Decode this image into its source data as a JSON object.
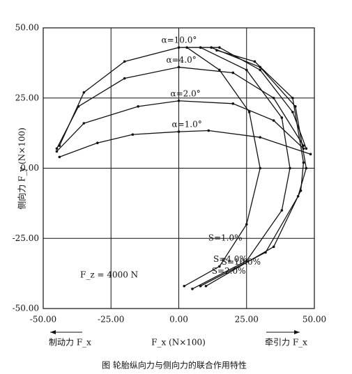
{
  "chart_data": {
    "type": "line",
    "ylabel": "侧向力 F_y (N×100)",
    "xlabel": "F_x (N×100)",
    "left_note": "制动力 F_x",
    "right_note": "牵引力 F_x",
    "annotation": "F_z = 4000 N",
    "caption": "图 轮胎纵向力与侧向力的联合作用特性",
    "xlim": [
      -50,
      50
    ],
    "ylim": [
      -50,
      50
    ],
    "xticks": [
      {
        "value": -50,
        "label": "-50.00"
      },
      {
        "value": -25,
        "label": "-25.00"
      },
      {
        "value": 0,
        "label": "0.00"
      },
      {
        "value": 25,
        "label": "25.00"
      },
      {
        "value": 50,
        "label": "50.00"
      }
    ],
    "yticks": [
      {
        "value": 50,
        "label": "50.00"
      },
      {
        "value": 25,
        "label": "25.00"
      },
      {
        "value": 0,
        "label": "0.00"
      },
      {
        "value": -25,
        "label": "-25.00"
      },
      {
        "value": -50,
        "label": "-50.00"
      }
    ],
    "grid": true,
    "series": [
      {
        "name": "α=1.0°",
        "color": "#111111",
        "x": [
          -44,
          -30,
          -17,
          0,
          11,
          30,
          48.6
        ],
        "values": [
          4,
          9,
          12,
          13,
          13.4,
          11,
          5
        ]
      },
      {
        "name": "α=2.0°",
        "color": "#111111",
        "x": [
          -45,
          -35,
          -15,
          0,
          20,
          35,
          46
        ],
        "values": [
          6,
          16,
          22,
          24,
          23,
          17,
          7
        ]
      },
      {
        "name": "α=4.0°",
        "color": "#111111",
        "x": [
          -45,
          -37,
          -20,
          0,
          20,
          35,
          46
        ],
        "values": [
          7,
          22,
          32,
          36,
          34,
          25,
          8
        ]
      },
      {
        "name": "α=10.0°",
        "color": "#111111",
        "x": [
          -44,
          -35,
          -20,
          0,
          15,
          30,
          42,
          47
        ],
        "values": [
          8,
          27,
          38,
          43,
          43,
          35,
          20,
          7
        ]
      },
      {
        "name": "S=1.0%",
        "color": "#111111",
        "x": [
          2,
          15,
          25,
          30,
          26,
          15,
          3
        ],
        "values": [
          -42,
          -35,
          -20,
          0,
          20,
          35,
          43
        ]
      },
      {
        "name": "S=2.0%",
        "color": "#111111",
        "x": [
          5,
          25,
          38,
          41,
          38,
          25,
          8
        ],
        "values": [
          -43,
          -33,
          -15,
          0,
          18,
          35,
          43
        ]
      },
      {
        "name": "S=4.0%",
        "color": "#111111",
        "x": [
          8,
          32,
          44,
          47,
          43,
          30,
          12
        ],
        "values": [
          -42,
          -30,
          -10,
          0,
          22,
          36,
          43
        ]
      },
      {
        "name": "S=10.0%",
        "color": "#111111",
        "x": [
          10,
          35,
          45,
          46,
          42,
          28,
          14
        ],
        "values": [
          -42,
          -28,
          -8,
          2,
          25,
          38,
          42
        ]
      }
    ]
  }
}
